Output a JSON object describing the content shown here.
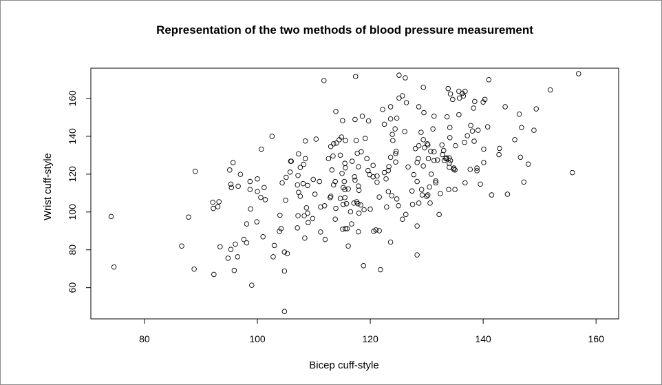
{
  "chart_data": {
    "type": "scatter",
    "title": "Representation of the two methods of blood pressure measurement",
    "xlabel": "Bicep cuff-style",
    "ylabel": "Wrist cuff-style",
    "xlim": [
      70.5,
      164
    ],
    "ylim": [
      43.5,
      176
    ],
    "xticks": [
      80,
      100,
      120,
      140,
      160
    ],
    "yticks": [
      60,
      80,
      100,
      120,
      140,
      160
    ],
    "grid": false,
    "marker": "open-circle",
    "points": [
      [
        74.1,
        97.6
      ],
      [
        74.6,
        70.9
      ],
      [
        89.0,
        121.5
      ],
      [
        87.8,
        97.3
      ],
      [
        86.6,
        82.0
      ],
      [
        88.8,
        69.8
      ],
      [
        92.1,
        105.1
      ],
      [
        93.2,
        105.4
      ],
      [
        92.2,
        101.9
      ],
      [
        93.0,
        102.8
      ],
      [
        92.3,
        67.0
      ],
      [
        93.4,
        81.6
      ],
      [
        94.8,
        75.6
      ],
      [
        95.3,
        80.2
      ],
      [
        96.1,
        83.0
      ],
      [
        96.5,
        76.3
      ],
      [
        95.9,
        69.1
      ],
      [
        95.1,
        122.2
      ],
      [
        95.7,
        126.1
      ],
      [
        97.0,
        119.9
      ],
      [
        95.3,
        114.7
      ],
      [
        95.4,
        112.9
      ],
      [
        96.6,
        113.6
      ],
      [
        98.8,
        101.6
      ],
      [
        98.1,
        93.7
      ],
      [
        99.9,
        94.8
      ],
      [
        97.6,
        85.5
      ],
      [
        98.1,
        83.7
      ],
      [
        99.0,
        61.3
      ],
      [
        98.7,
        116.1
      ],
      [
        98.7,
        111.9
      ],
      [
        100.0,
        117.5
      ],
      [
        100.0,
        110.8
      ],
      [
        100.7,
        133.2
      ],
      [
        102.6,
        140.0
      ],
      [
        101.2,
        112.9
      ],
      [
        100.6,
        107.7
      ],
      [
        101.4,
        106.5
      ],
      [
        101.0,
        86.9
      ],
      [
        103.0,
        82.3
      ],
      [
        102.8,
        76.3
      ],
      [
        104.8,
        78.8
      ],
      [
        105.3,
        78.0
      ],
      [
        104.8,
        68.8
      ],
      [
        104.8,
        47.4
      ],
      [
        104.0,
        98.3
      ],
      [
        104.2,
        91.2
      ],
      [
        103.9,
        89.8
      ],
      [
        105.0,
        106.2
      ],
      [
        104.4,
        115.4
      ],
      [
        105.1,
        118.3
      ],
      [
        105.8,
        121.1
      ],
      [
        105.9,
        126.8
      ],
      [
        111.8,
        169.5
      ],
      [
        117.4,
        171.6
      ],
      [
        125.1,
        172.3
      ],
      [
        126.2,
        170.9
      ],
      [
        129.4,
        165.9
      ],
      [
        133.8,
        165.2
      ],
      [
        134.2,
        162.4
      ],
      [
        134.6,
        159.5
      ],
      [
        113.9,
        153.1
      ],
      [
        115.1,
        148.3
      ],
      [
        117.3,
        148.9
      ],
      [
        118.6,
        150.6
      ],
      [
        119.7,
        148.1
      ],
      [
        122.2,
        154.2
      ],
      [
        123.6,
        155.6
      ],
      [
        125.1,
        160.2
      ],
      [
        125.7,
        161.4
      ],
      [
        126.4,
        157.8
      ],
      [
        128.6,
        155.6
      ],
      [
        129.5,
        152.5
      ],
      [
        131.3,
        150.6
      ],
      [
        133.6,
        150.3
      ],
      [
        122.5,
        146.4
      ],
      [
        123.6,
        149.2
      ],
      [
        124.7,
        149.6
      ],
      [
        124.4,
        143.9
      ],
      [
        123.9,
        141.0
      ],
      [
        124.0,
        137.8
      ],
      [
        126.1,
        142.5
      ],
      [
        129.0,
        142.1
      ],
      [
        131.1,
        143.9
      ],
      [
        134.1,
        144.6
      ],
      [
        134.1,
        139.3
      ],
      [
        108.5,
        137.5
      ],
      [
        110.4,
        138.5
      ],
      [
        113.0,
        134.6
      ],
      [
        113.5,
        136.0
      ],
      [
        114.0,
        136.4
      ],
      [
        114.5,
        138.2
      ],
      [
        114.9,
        139.6
      ],
      [
        115.6,
        137.8
      ],
      [
        117.5,
        137.8
      ],
      [
        119.1,
        138.9
      ],
      [
        107.3,
        130.7
      ],
      [
        108.5,
        128.2
      ],
      [
        108.2,
        125.2
      ],
      [
        107.6,
        123.5
      ],
      [
        106.0,
        126.8
      ],
      [
        107.2,
        119.3
      ],
      [
        112.6,
        128.2
      ],
      [
        113.4,
        129.6
      ],
      [
        114.7,
        130.0
      ],
      [
        117.7,
        131.0
      ],
      [
        118.4,
        131.8
      ],
      [
        116.8,
        126.8
      ],
      [
        115.5,
        125.7
      ],
      [
        115.6,
        123.3
      ],
      [
        113.2,
        122.2
      ],
      [
        115.0,
        120.4
      ],
      [
        117.9,
        123.9
      ],
      [
        119.4,
        128.2
      ],
      [
        120.5,
        124.6
      ],
      [
        123.3,
        124.0
      ],
      [
        123.6,
        128.9
      ],
      [
        124.5,
        126.4
      ],
      [
        124.5,
        130.9
      ],
      [
        124.6,
        132.1
      ],
      [
        123.2,
        121.9
      ],
      [
        122.5,
        120.8
      ],
      [
        122.8,
        117.5
      ],
      [
        121.2,
        119.0
      ],
      [
        121.2,
        115.7
      ],
      [
        119.6,
        121.9
      ],
      [
        119.9,
        119.7
      ],
      [
        120.5,
        118.6
      ],
      [
        117.2,
        118.6
      ],
      [
        117.3,
        116.8
      ],
      [
        117.9,
        113.7
      ],
      [
        118.0,
        111.5
      ],
      [
        113.8,
        116.1
      ],
      [
        113.5,
        114.3
      ],
      [
        115.4,
        116.1
      ],
      [
        115.2,
        112.9
      ],
      [
        115.5,
        111.8
      ],
      [
        116.1,
        112.2
      ],
      [
        114.7,
        107.2
      ],
      [
        115.5,
        107.6
      ],
      [
        115.2,
        104.0
      ],
      [
        115.8,
        104.4
      ],
      [
        113.9,
        101.9
      ],
      [
        113.8,
        96.2
      ],
      [
        109.9,
        117.2
      ],
      [
        111.0,
        116.1
      ],
      [
        108.1,
        115.0
      ],
      [
        108.9,
        114.0
      ],
      [
        107.1,
        114.3
      ],
      [
        107.3,
        110.4
      ],
      [
        107.6,
        108.3
      ],
      [
        110.2,
        109.4
      ],
      [
        113.0,
        108.3
      ],
      [
        112.9,
        107.6
      ],
      [
        111.9,
        103.3
      ],
      [
        111.2,
        102.6
      ],
      [
        107.2,
        98.0
      ],
      [
        108.3,
        98.0
      ],
      [
        108.9,
        99.4
      ],
      [
        108.7,
        102.2
      ],
      [
        109.8,
        96.5
      ],
      [
        109.0,
        94.4
      ],
      [
        107.1,
        91.6
      ],
      [
        108.4,
        86.2
      ],
      [
        111.2,
        89.4
      ],
      [
        112.0,
        85.5
      ],
      [
        116.5,
        100.1
      ],
      [
        117.1,
        104.7
      ],
      [
        117.6,
        105.4
      ],
      [
        117.8,
        104.4
      ],
      [
        118.3,
        103.7
      ],
      [
        118.9,
        101.2
      ],
      [
        120.0,
        101.5
      ],
      [
        118.0,
        99.4
      ],
      [
        116.7,
        93.7
      ],
      [
        115.1,
        90.9
      ],
      [
        115.6,
        91.2
      ],
      [
        115.9,
        91.2
      ],
      [
        117.9,
        89.5
      ],
      [
        116.1,
        82.0
      ],
      [
        120.6,
        89.8
      ],
      [
        121.0,
        90.5
      ],
      [
        121.6,
        90.1
      ],
      [
        118.8,
        71.6
      ],
      [
        121.8,
        69.5
      ],
      [
        122.9,
        102.6
      ],
      [
        125.0,
        103.3
      ],
      [
        124.7,
        106.9
      ],
      [
        123.8,
        108.6
      ],
      [
        123.2,
        110.8
      ],
      [
        121.6,
        107.9
      ],
      [
        126.3,
        98.7
      ],
      [
        125.7,
        96.2
      ],
      [
        128.3,
        92.6
      ],
      [
        123.6,
        84.1
      ],
      [
        128.3,
        77.3
      ],
      [
        126.7,
        123.8
      ],
      [
        127.7,
        119.7
      ],
      [
        128.3,
        126.1
      ],
      [
        128.5,
        128.2
      ],
      [
        129.4,
        124.3
      ],
      [
        128.3,
        116.1
      ],
      [
        127.4,
        111.1
      ],
      [
        129.1,
        111.9
      ],
      [
        129.2,
        109.0
      ],
      [
        130.0,
        108.3
      ],
      [
        130.2,
        109.0
      ],
      [
        130.6,
        104.7
      ],
      [
        128.6,
        104.7
      ],
      [
        127.5,
        104.0
      ],
      [
        130.5,
        113.2
      ],
      [
        130.8,
        120.0
      ],
      [
        131.6,
        116.4
      ],
      [
        131.6,
        115.4
      ],
      [
        132.4,
        109.7
      ],
      [
        132.2,
        98.7
      ],
      [
        133.9,
        111.9
      ],
      [
        135.0,
        111.9
      ],
      [
        128.0,
        133.5
      ],
      [
        128.6,
        135.0
      ],
      [
        129.4,
        138.2
      ],
      [
        129.6,
        133.9
      ],
      [
        130.1,
        136.0
      ],
      [
        130.2,
        135.4
      ],
      [
        130.7,
        132.1
      ],
      [
        131.3,
        131.8
      ],
      [
        130.3,
        128.2
      ],
      [
        131.9,
        127.5
      ],
      [
        132.7,
        135.4
      ],
      [
        133.0,
        132.5
      ],
      [
        132.8,
        130.3
      ],
      [
        133.1,
        127.2
      ],
      [
        133.4,
        128.2
      ],
      [
        134.2,
        127.2
      ],
      [
        134.0,
        123.6
      ],
      [
        134.8,
        123.2
      ],
      [
        131.3,
        127.2
      ],
      [
        156.9,
        173.1
      ],
      [
        151.9,
        164.5
      ],
      [
        141.0,
        169.9
      ],
      [
        135.7,
        163.8
      ],
      [
        135.8,
        160.2
      ],
      [
        136.3,
        162.7
      ],
      [
        136.5,
        161.3
      ],
      [
        136.8,
        163.8
      ],
      [
        138.5,
        158.4
      ],
      [
        138.3,
        154.9
      ],
      [
        140.0,
        158.1
      ],
      [
        140.3,
        159.5
      ],
      [
        135.7,
        151.4
      ],
      [
        143.9,
        155.6
      ],
      [
        149.4,
        154.5
      ],
      [
        146.4,
        151.7
      ],
      [
        137.8,
        145.7
      ],
      [
        138.1,
        142.8
      ],
      [
        139.1,
        143.2
      ],
      [
        140.8,
        145.0
      ],
      [
        137.2,
        140.3
      ],
      [
        136.7,
        136.8
      ],
      [
        138.4,
        137.4
      ],
      [
        135.1,
        135.0
      ],
      [
        140.1,
        133.2
      ],
      [
        142.9,
        133.6
      ],
      [
        142.8,
        130.3
      ],
      [
        145.6,
        138.2
      ],
      [
        146.8,
        144.6
      ],
      [
        149.0,
        143.2
      ],
      [
        146.6,
        128.9
      ],
      [
        148.0,
        125.3
      ],
      [
        140.1,
        126.1
      ],
      [
        137.7,
        122.5
      ],
      [
        138.9,
        123.2
      ],
      [
        138.9,
        121.8
      ],
      [
        136.8,
        115.4
      ],
      [
        139.5,
        114.7
      ],
      [
        141.5,
        109.0
      ],
      [
        144.3,
        109.4
      ],
      [
        147.2,
        115.8
      ],
      [
        155.8,
        120.8
      ],
      [
        133.5,
        128.6
      ],
      [
        134.0,
        128.6
      ],
      [
        134.0,
        125.8
      ],
      [
        135.0,
        122.2
      ],
      [
        134.8,
        122.5
      ]
    ]
  }
}
